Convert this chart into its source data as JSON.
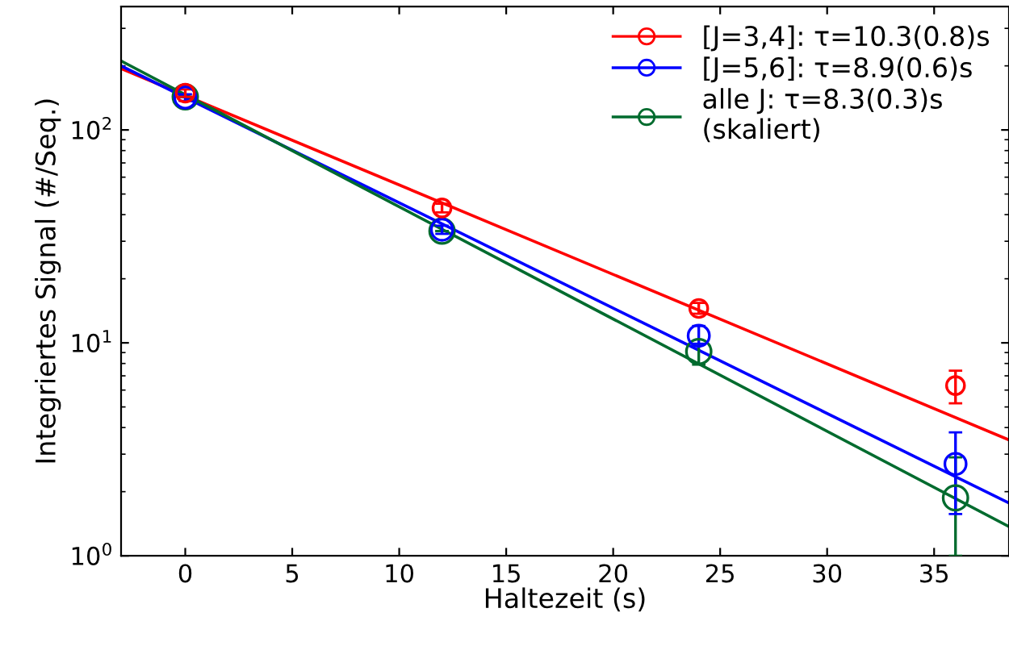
{
  "chart_data": {
    "type": "scatter",
    "xlabel": "Haltezeit (s)",
    "ylabel": "Integriertes Signal (#/Seq.)",
    "log": "y",
    "grid": false,
    "legend": "top right",
    "marker": "circle",
    "xlim": [
      -3,
      38.5
    ],
    "xticks": [
      0,
      5,
      10,
      15,
      20,
      25,
      30,
      35
    ],
    "ylim": [
      1,
      380
    ],
    "yticks": [
      {
        "value": 1,
        "label": "10$^{0}$"
      },
      {
        "value": 10,
        "label": "10$^{1}$"
      },
      {
        "value": 100,
        "label": "10$^{2}$"
      }
    ],
    "series": [
      {
        "name": "[J=3,4]: τ=10.3(0.8)s",
        "color": "#ff0000",
        "x": [
          0,
          12,
          24,
          36
        ],
        "values": [
          149,
          43,
          14.5,
          6.3
        ],
        "errors": [
          [
            143,
            155
          ],
          [
            41,
            45
          ],
          [
            13.7,
            15.4
          ],
          [
            5.2,
            7.4
          ]
        ]
      },
      {
        "name": "[J=5,6]: τ=8.9(0.6)s",
        "color": "#0000ff",
        "x": [
          0,
          12,
          24,
          36
        ],
        "values": [
          142,
          34,
          10.8,
          2.7
        ],
        "errors": [
          [
            137,
            147
          ],
          [
            32.5,
            35.5
          ],
          [
            9.9,
            12
          ],
          [
            1.57,
            3.8
          ]
        ]
      },
      {
        "name": "alle J: τ=8.3(0.3)s\n(skaliert)",
        "color": "#006b2e",
        "x": [
          0,
          12,
          24,
          36
        ],
        "values": [
          143,
          33.5,
          9.1,
          1.87
        ],
        "errors": [
          null,
          null,
          [
            7.9,
            9.9
          ],
          [
            1,
            2.9
          ]
        ]
      },
      {
        "type": "line",
        "marker": "none",
        "color": "#ff0000",
        "x": [
          -3,
          38.5
        ],
        "values": [
          194,
          3.5
        ]
      },
      {
        "type": "line",
        "marker": "none",
        "color": "#0000ff",
        "x": [
          -3,
          38.5
        ],
        "values": [
          200,
          1.77
        ]
      },
      {
        "type": "line",
        "marker": "none",
        "color": "#006b2e",
        "x": [
          -3,
          38.5
        ],
        "values": [
          211,
          1.37
        ]
      }
    ]
  }
}
